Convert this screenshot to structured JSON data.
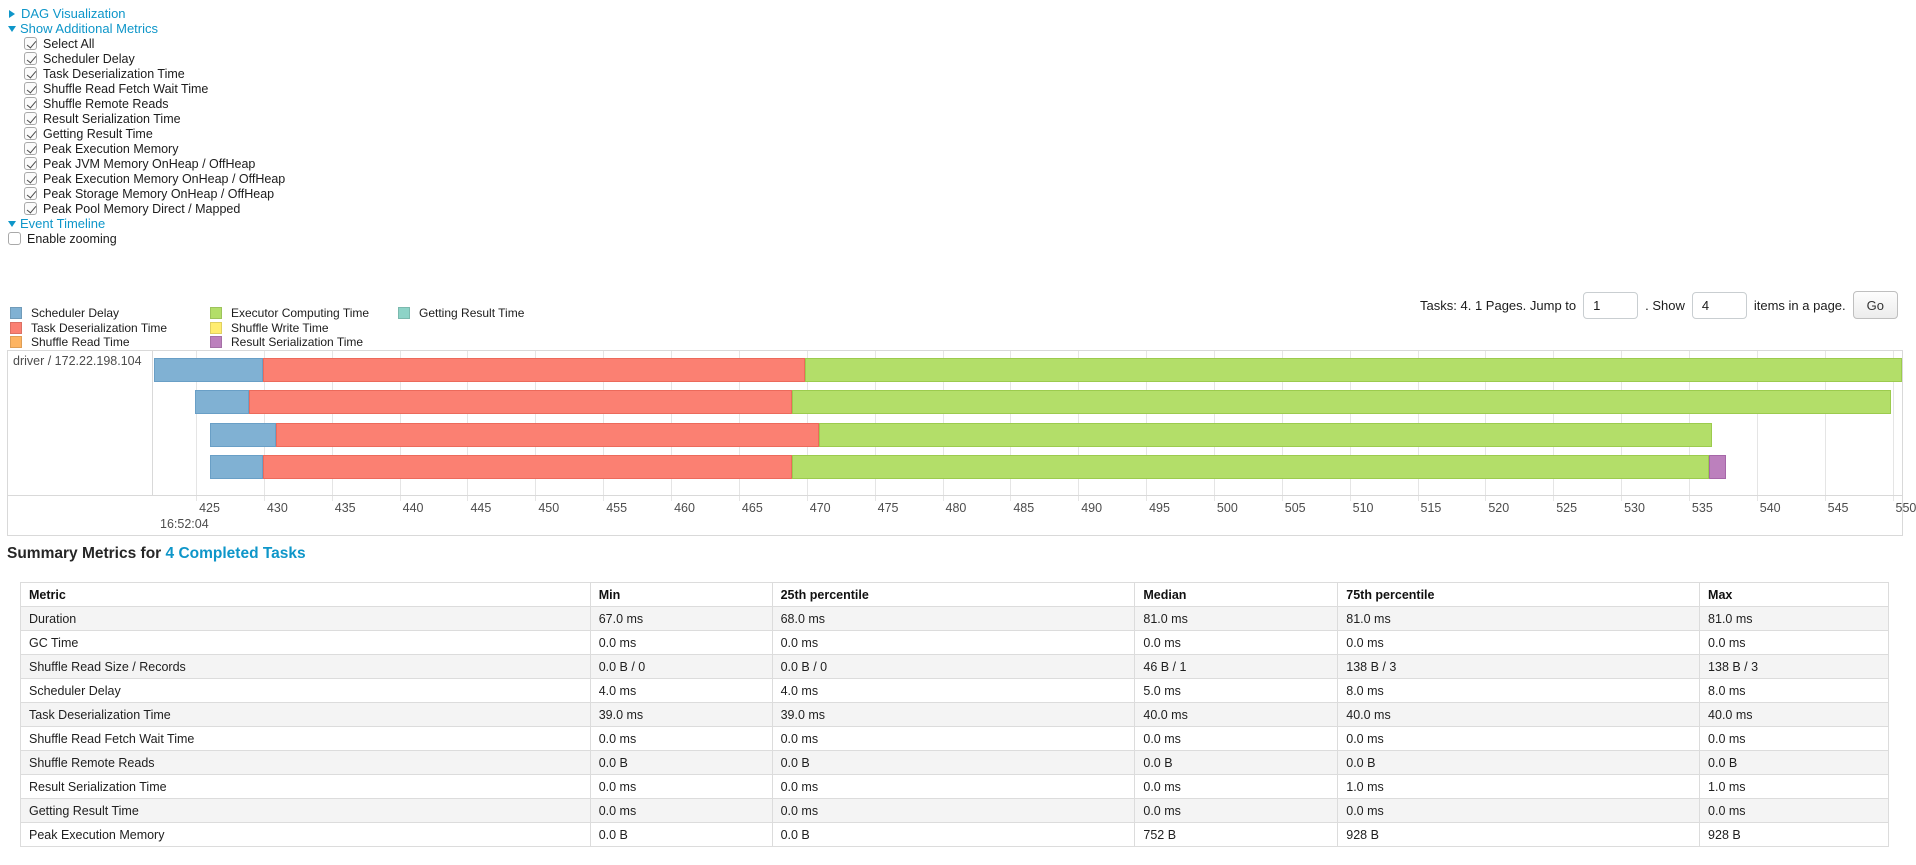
{
  "colors": {
    "link": "#0e96c9",
    "table_stripe": "#f4f4f4",
    "grid_line": "#e5e5e5"
  },
  "controls": {
    "dag_visualization": "DAG Visualization",
    "show_additional_metrics": "Show Additional Metrics",
    "metric_checkboxes": [
      {
        "label": "Select All",
        "checked": true
      },
      {
        "label": "Scheduler Delay",
        "checked": true
      },
      {
        "label": "Task Deserialization Time",
        "checked": true
      },
      {
        "label": "Shuffle Read Fetch Wait Time",
        "checked": true
      },
      {
        "label": "Shuffle Remote Reads",
        "checked": true
      },
      {
        "label": "Result Serialization Time",
        "checked": true
      },
      {
        "label": "Getting Result Time",
        "checked": true
      },
      {
        "label": "Peak Execution Memory",
        "checked": true
      },
      {
        "label": "Peak JVM Memory OnHeap / OffHeap",
        "checked": true
      },
      {
        "label": "Peak Execution Memory OnHeap / OffHeap",
        "checked": true
      },
      {
        "label": "Peak Storage Memory OnHeap / OffHeap",
        "checked": true
      },
      {
        "label": "Peak Pool Memory Direct / Mapped",
        "checked": true
      }
    ],
    "event_timeline": "Event Timeline",
    "enable_zooming": {
      "label": "Enable zooming",
      "checked": false
    }
  },
  "legend": {
    "items": [
      {
        "label": "Scheduler Delay",
        "color": "#80B1D3"
      },
      {
        "label": "Task Deserialization Time",
        "color": "#FB8072"
      },
      {
        "label": "Shuffle Read Time",
        "color": "#FDB462"
      },
      {
        "label": "Executor Computing Time",
        "color": "#B3DE69"
      },
      {
        "label": "Shuffle Write Time",
        "color": "#FFED6F"
      },
      {
        "label": "Result Serialization Time",
        "color": "#BC80BD"
      },
      {
        "label": "Getting Result Time",
        "color": "#8DD3C7"
      }
    ]
  },
  "pagination": {
    "tasks_label": "Tasks: 4. 1 Pages. Jump to",
    "jump_value": "1",
    "show_label": ". Show",
    "show_value": "4",
    "items_label": "items in a page.",
    "go_label": "Go"
  },
  "chart_data": {
    "type": "timeline",
    "group_label": "driver / 172.22.198.104",
    "major_tick_label": "16:52:04",
    "axis_unit": "ms within second 16:52:04",
    "window": {
      "start": 421.9,
      "end": 550.7
    },
    "ticks": [
      425,
      430,
      435,
      440,
      445,
      450,
      455,
      460,
      465,
      470,
      475,
      480,
      485,
      490,
      495,
      500,
      505,
      510,
      515,
      520,
      525,
      530,
      535,
      540,
      545,
      550
    ],
    "series_colors": {
      "scheduler_delay": {
        "fill": "#80B1D3",
        "border": "#699FC6"
      },
      "task_deserialization": {
        "fill": "#FB8072",
        "border": "#EC6A5B"
      },
      "executor_computing": {
        "fill": "#B3DE69",
        "border": "#9CCB4E"
      },
      "result_serialization": {
        "fill": "#BC80BD",
        "border": "#A667A8"
      }
    },
    "tasks": [
      {
        "segments": [
          {
            "type": "scheduler_delay",
            "start": 421.9,
            "end": 429.9
          },
          {
            "type": "task_deserialization",
            "start": 429.9,
            "end": 469.9
          },
          {
            "type": "executor_computing",
            "start": 469.9,
            "end": 550.7
          }
        ]
      },
      {
        "segments": [
          {
            "type": "scheduler_delay",
            "start": 424.9,
            "end": 428.9
          },
          {
            "type": "task_deserialization",
            "start": 428.9,
            "end": 468.9
          },
          {
            "type": "executor_computing",
            "start": 468.9,
            "end": 549.9
          }
        ]
      },
      {
        "segments": [
          {
            "type": "scheduler_delay",
            "start": 426.0,
            "end": 430.9
          },
          {
            "type": "task_deserialization",
            "start": 430.9,
            "end": 470.9
          },
          {
            "type": "executor_computing",
            "start": 470.9,
            "end": 536.7
          }
        ]
      },
      {
        "segments": [
          {
            "type": "scheduler_delay",
            "start": 426.0,
            "end": 429.9
          },
          {
            "type": "task_deserialization",
            "start": 429.9,
            "end": 468.9
          },
          {
            "type": "executor_computing",
            "start": 468.9,
            "end": 536.5
          },
          {
            "type": "result_serialization",
            "start": 536.5,
            "end": 537.7
          }
        ]
      }
    ]
  },
  "summary": {
    "title_prefix": "Summary Metrics for",
    "title_link": "4 Completed Tasks",
    "columns": [
      "Metric",
      "Min",
      "25th percentile",
      "Median",
      "75th percentile",
      "Max"
    ],
    "rows": [
      [
        "Duration",
        "67.0 ms",
        "68.0 ms",
        "81.0 ms",
        "81.0 ms",
        "81.0 ms"
      ],
      [
        "GC Time",
        "0.0 ms",
        "0.0 ms",
        "0.0 ms",
        "0.0 ms",
        "0.0 ms"
      ],
      [
        "Shuffle Read Size / Records",
        "0.0 B / 0",
        "0.0 B / 0",
        "46 B / 1",
        "138 B / 3",
        "138 B / 3"
      ],
      [
        "Scheduler Delay",
        "4.0 ms",
        "4.0 ms",
        "5.0 ms",
        "8.0 ms",
        "8.0 ms"
      ],
      [
        "Task Deserialization Time",
        "39.0 ms",
        "39.0 ms",
        "40.0 ms",
        "40.0 ms",
        "40.0 ms"
      ],
      [
        "Shuffle Read Fetch Wait Time",
        "0.0 ms",
        "0.0 ms",
        "0.0 ms",
        "0.0 ms",
        "0.0 ms"
      ],
      [
        "Shuffle Remote Reads",
        "0.0 B",
        "0.0 B",
        "0.0 B",
        "0.0 B",
        "0.0 B"
      ],
      [
        "Result Serialization Time",
        "0.0 ms",
        "0.0 ms",
        "0.0 ms",
        "1.0 ms",
        "1.0 ms"
      ],
      [
        "Getting Result Time",
        "0.0 ms",
        "0.0 ms",
        "0.0 ms",
        "0.0 ms",
        "0.0 ms"
      ],
      [
        "Peak Execution Memory",
        "0.0 B",
        "0.0 B",
        "752 B",
        "928 B",
        "928 B"
      ]
    ]
  }
}
